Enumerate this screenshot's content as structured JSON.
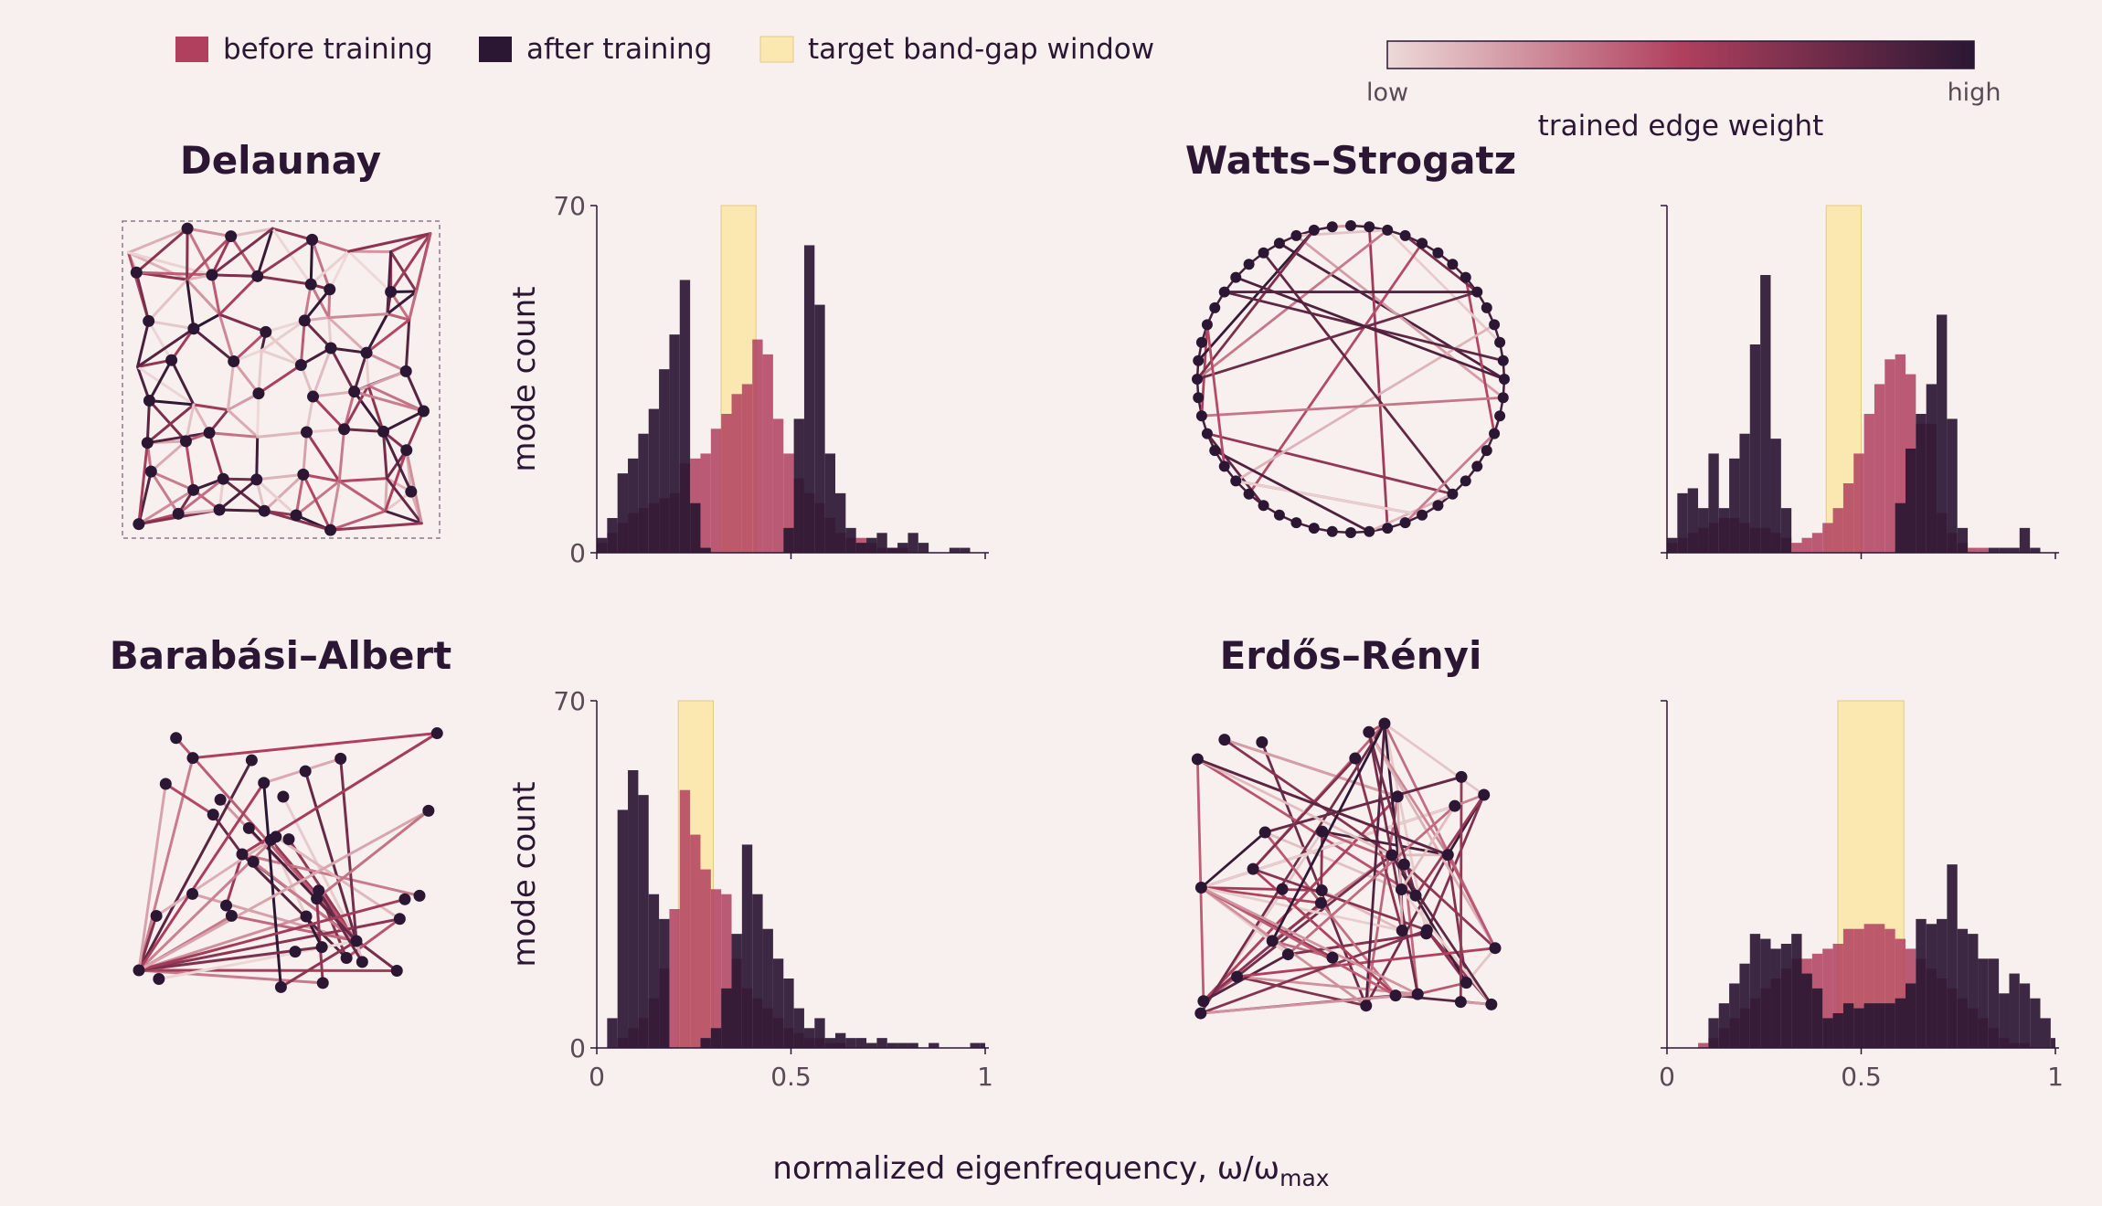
{
  "figure": {
    "background": "#f8f0ee",
    "xlabel": "normalized eigenfrequency, ω/ω",
    "xlabel_sub": "max",
    "ylabel": "mode count",
    "colorbar": {
      "title": "trained edge weight",
      "low": "low",
      "high": "high",
      "colors": [
        "#eddad8",
        "#b0405e",
        "#2b1733"
      ]
    }
  },
  "legend": [
    {
      "label": "before training",
      "color": "#b0405e"
    },
    {
      "label": "after training",
      "color": "#2b1733"
    },
    {
      "label": "target band-gap window",
      "color": "#fbe7b0"
    }
  ],
  "chart_data": [
    {
      "type": "bar",
      "title": "Delaunay",
      "xlim": [
        0,
        1
      ],
      "ylim": [
        0,
        70
      ],
      "xticks": [
        "0",
        "0.5",
        "1"
      ],
      "yticks": [
        "0",
        "70"
      ],
      "show_ytick_labels": true,
      "show_xtick_labels": false,
      "bin_start": 0.0,
      "bin_width": 0.0267,
      "target_window": [
        0.32,
        0.41
      ],
      "series": [
        {
          "name": "before training",
          "values": [
            2,
            4,
            6,
            8,
            9,
            10,
            11,
            12,
            18,
            19,
            20,
            25,
            28,
            32,
            34,
            43,
            40,
            27,
            20,
            15,
            12,
            10,
            7,
            4,
            3,
            3,
            2,
            1,
            1,
            1,
            0,
            0,
            0,
            0,
            0,
            0,
            0,
            0,
            0
          ]
        },
        {
          "name": "after training",
          "values": [
            3,
            7,
            16,
            19,
            24,
            29,
            37,
            44,
            55,
            10,
            1,
            0,
            0,
            0,
            0,
            0,
            0,
            0,
            5,
            27,
            62,
            50,
            20,
            12,
            5,
            2,
            3,
            4,
            1,
            2,
            4,
            2,
            0,
            0,
            1,
            1,
            0,
            0,
            1
          ]
        }
      ]
    },
    {
      "type": "bar",
      "title": "Watts–Strogatz",
      "xlim": [
        0,
        1
      ],
      "ylim": [
        0,
        70
      ],
      "xticks": [
        "0",
        "0.5",
        "1"
      ],
      "yticks": [
        "0",
        "70"
      ],
      "show_ytick_labels": false,
      "show_xtick_labels": false,
      "bin_start": 0.0,
      "bin_width": 0.0267,
      "target_window": [
        0.41,
        0.5
      ],
      "series": [
        {
          "name": "before training",
          "values": [
            2,
            3,
            4,
            5,
            6,
            7,
            7,
            6,
            5,
            5,
            4,
            3,
            2,
            3,
            4,
            6,
            9,
            14,
            20,
            28,
            34,
            39,
            40,
            36,
            26,
            26,
            8,
            4,
            2,
            1,
            1,
            0,
            0,
            0,
            0,
            0,
            0,
            0,
            0
          ]
        },
        {
          "name": "after training",
          "values": [
            3,
            12,
            13,
            9,
            20,
            9,
            19,
            24,
            42,
            56,
            23,
            9,
            0,
            0,
            0,
            0,
            0,
            0,
            0,
            0,
            0,
            0,
            10,
            21,
            28,
            34,
            48,
            27,
            5,
            0,
            0,
            1,
            1,
            1,
            5,
            1,
            0,
            0,
            1
          ]
        }
      ]
    },
    {
      "type": "bar",
      "title": "Barabási–Albert",
      "xlim": [
        0,
        1
      ],
      "ylim": [
        0,
        70
      ],
      "xticks": [
        "0",
        "0.5",
        "1"
      ],
      "yticks": [
        "0",
        "70"
      ],
      "show_ytick_labels": true,
      "show_xtick_labels": true,
      "bin_start": 0.0,
      "bin_width": 0.0267,
      "target_window": [
        0.21,
        0.3
      ],
      "series": [
        {
          "name": "before training",
          "values": [
            0,
            0,
            2,
            4,
            6,
            10,
            16,
            28,
            52,
            43,
            36,
            32,
            31,
            18,
            12,
            10,
            8,
            6,
            4,
            3,
            2,
            2,
            1,
            1,
            0,
            0,
            0,
            0,
            0,
            0,
            0,
            0,
            0,
            0,
            0,
            0,
            0,
            0,
            0
          ]
        },
        {
          "name": "after training",
          "values": [
            0,
            6,
            48,
            56,
            51,
            31,
            26,
            0,
            0,
            0,
            2,
            4,
            12,
            23,
            41,
            31,
            24,
            18,
            14,
            8,
            4,
            6,
            2,
            3,
            2,
            2,
            1,
            2,
            1,
            1,
            1,
            0,
            1,
            0,
            0,
            0,
            1,
            1,
            0
          ]
        }
      ]
    },
    {
      "type": "bar",
      "title": "Erdős–Rényi",
      "xlim": [
        0,
        1
      ],
      "ylim": [
        0,
        70
      ],
      "xticks": [
        "0",
        "0.5",
        "1"
      ],
      "yticks": [
        "0",
        "70"
      ],
      "show_ytick_labels": false,
      "show_xtick_labels": true,
      "bin_start": 0.0,
      "bin_width": 0.0267,
      "target_window": [
        0.44,
        0.61
      ],
      "series": [
        {
          "name": "before training",
          "values": [
            0,
            0,
            0,
            1,
            2,
            4,
            6,
            8,
            10,
            12,
            14,
            16,
            18,
            18,
            19,
            20,
            21,
            24,
            24,
            25,
            25,
            24,
            22,
            20,
            18,
            16,
            14,
            12,
            10,
            8,
            6,
            4,
            2,
            1,
            1,
            0,
            0,
            0,
            0
          ]
        },
        {
          "name": "after training",
          "values": [
            0,
            0,
            0,
            0,
            6,
            9,
            13,
            17,
            23,
            22,
            20,
            21,
            23,
            15,
            12,
            6,
            7,
            9,
            8,
            9,
            9,
            9,
            10,
            13,
            26,
            25,
            26,
            37,
            24,
            23,
            18,
            18,
            11,
            15,
            13,
            10,
            6,
            2,
            1
          ]
        }
      ]
    }
  ]
}
